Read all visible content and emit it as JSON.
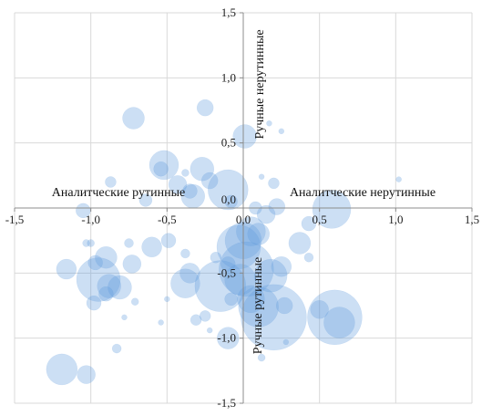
{
  "chart_data": {
    "type": "scatter",
    "subtype": "bubble",
    "title": "",
    "xlabel": "",
    "ylabel": "",
    "xlim": [
      -1.5,
      1.5
    ],
    "ylim": [
      -1.5,
      1.5
    ],
    "x_ticks": [
      -1.5,
      -1.0,
      -0.5,
      0.0,
      0.5,
      1.0,
      1.5
    ],
    "y_ticks": [
      -1.5,
      -1.0,
      -0.5,
      0.0,
      0.5,
      1.0,
      1.5
    ],
    "x_tick_labels": [
      "-1,5",
      "-1,0",
      "-0,5",
      "0,0",
      "0,5",
      "1,0",
      "1,5"
    ],
    "y_tick_labels": [
      "-1,5",
      "-1,0",
      "-0,5",
      "0,0",
      "0,5",
      "1,0",
      "1,5"
    ],
    "grid": true,
    "bubble_color": "#6A9FDC",
    "quadrant_labels": {
      "left": "Аналитческие рутинные",
      "right": "Аналитческие нерутинные",
      "top": "Ручные нерутинные",
      "bottom": "Ручные рутинные"
    },
    "points": [
      {
        "x": -0.72,
        "y": 0.69,
        "size": 12
      },
      {
        "x": -0.25,
        "y": 0.77,
        "size": 9
      },
      {
        "x": 0.01,
        "y": 0.55,
        "size": 13
      },
      {
        "x": 0.17,
        "y": 0.65,
        "size": 3
      },
      {
        "x": 0.25,
        "y": 0.59,
        "size": 3
      },
      {
        "x": -0.52,
        "y": 0.33,
        "size": 16
      },
      {
        "x": -0.54,
        "y": 0.3,
        "size": 8
      },
      {
        "x": -0.27,
        "y": 0.3,
        "size": 13
      },
      {
        "x": -0.22,
        "y": 0.21,
        "size": 9
      },
      {
        "x": -0.1,
        "y": 0.14,
        "size": 22
      },
      {
        "x": -0.08,
        "y": 0.05,
        "size": 7
      },
      {
        "x": -0.38,
        "y": 0.27,
        "size": 4
      },
      {
        "x": -0.43,
        "y": 0.18,
        "size": 10
      },
      {
        "x": -0.35,
        "y": 0.13,
        "size": 8
      },
      {
        "x": -0.33,
        "y": 0.09,
        "size": 13
      },
      {
        "x": -0.64,
        "y": 0.06,
        "size": 7
      },
      {
        "x": -0.87,
        "y": 0.2,
        "size": 6
      },
      {
        "x": -1.05,
        "y": -0.02,
        "size": 8
      },
      {
        "x": 0.2,
        "y": 0.19,
        "size": 6
      },
      {
        "x": 0.12,
        "y": 0.24,
        "size": 3
      },
      {
        "x": 0.22,
        "y": 0.01,
        "size": 9
      },
      {
        "x": 0.58,
        "y": -0.01,
        "size": 21
      },
      {
        "x": 1.02,
        "y": 0.22,
        "size": 3
      },
      {
        "x": 0.43,
        "y": -0.12,
        "size": 8
      },
      {
        "x": 0.37,
        "y": -0.27,
        "size": 12
      },
      {
        "x": 0.43,
        "y": -0.38,
        "size": 5
      },
      {
        "x": -1.0,
        "y": -0.27,
        "size": 4
      },
      {
        "x": -1.03,
        "y": -0.27,
        "size": 4
      },
      {
        "x": -0.75,
        "y": -0.27,
        "size": 5
      },
      {
        "x": -0.6,
        "y": -0.3,
        "size": 11
      },
      {
        "x": -0.49,
        "y": -0.25,
        "size": 8
      },
      {
        "x": -0.38,
        "y": -0.35,
        "size": 5
      },
      {
        "x": -1.16,
        "y": -0.47,
        "size": 11
      },
      {
        "x": -0.97,
        "y": -0.42,
        "size": 8
      },
      {
        "x": -0.9,
        "y": -0.38,
        "size": 12
      },
      {
        "x": -0.95,
        "y": -0.55,
        "size": 24
      },
      {
        "x": -0.88,
        "y": -0.6,
        "size": 13
      },
      {
        "x": -0.9,
        "y": -0.66,
        "size": 8
      },
      {
        "x": -0.81,
        "y": -0.61,
        "size": 13
      },
      {
        "x": -0.98,
        "y": -0.73,
        "size": 8
      },
      {
        "x": -0.73,
        "y": -0.43,
        "size": 10
      },
      {
        "x": -0.71,
        "y": -0.72,
        "size": 4
      },
      {
        "x": -0.78,
        "y": -0.84,
        "size": 3
      },
      {
        "x": -0.5,
        "y": -0.7,
        "size": 3
      },
      {
        "x": -0.54,
        "y": -0.88,
        "size": 3
      },
      {
        "x": -0.35,
        "y": -0.5,
        "size": 11
      },
      {
        "x": -0.38,
        "y": -0.58,
        "size": 16
      },
      {
        "x": -0.31,
        "y": -0.86,
        "size": 6
      },
      {
        "x": -0.25,
        "y": -0.83,
        "size": 6
      },
      {
        "x": -0.22,
        "y": -0.94,
        "size": 3
      },
      {
        "x": -0.1,
        "y": -1.0,
        "size": 12
      },
      {
        "x": -1.19,
        "y": -1.24,
        "size": 17
      },
      {
        "x": -1.03,
        "y": -1.28,
        "size": 10
      },
      {
        "x": -0.83,
        "y": -1.08,
        "size": 5
      },
      {
        "x": -0.15,
        "y": -0.6,
        "size": 28
      },
      {
        "x": -0.03,
        "y": -0.3,
        "size": 24
      },
      {
        "x": 0.0,
        "y": -0.25,
        "size": 20
      },
      {
        "x": 0.05,
        "y": -0.18,
        "size": 16
      },
      {
        "x": 0.1,
        "y": -0.2,
        "size": 12
      },
      {
        "x": 0.02,
        "y": -0.47,
        "size": 30
      },
      {
        "x": -0.02,
        "y": -0.55,
        "size": 17
      },
      {
        "x": 0.05,
        "y": -0.7,
        "size": 15
      },
      {
        "x": 0.1,
        "y": -0.76,
        "size": 22
      },
      {
        "x": 0.18,
        "y": -0.52,
        "size": 18
      },
      {
        "x": 0.2,
        "y": -0.84,
        "size": 36
      },
      {
        "x": 0.25,
        "y": -0.45,
        "size": 11
      },
      {
        "x": 0.15,
        "y": -0.05,
        "size": 10
      },
      {
        "x": 0.08,
        "y": 0.0,
        "size": 7
      },
      {
        "x": 0.27,
        "y": -0.75,
        "size": 9
      },
      {
        "x": 0.28,
        "y": -1.03,
        "size": 3
      },
      {
        "x": 0.5,
        "y": -0.78,
        "size": 10
      },
      {
        "x": 0.6,
        "y": -0.84,
        "size": 30
      },
      {
        "x": 0.63,
        "y": -0.88,
        "size": 17
      },
      {
        "x": 0.12,
        "y": -1.15,
        "size": 4
      },
      {
        "x": -0.1,
        "y": -0.43,
        "size": 8
      },
      {
        "x": -0.18,
        "y": -0.38,
        "size": 6
      },
      {
        "x": -0.08,
        "y": -0.7,
        "size": 7
      }
    ]
  }
}
